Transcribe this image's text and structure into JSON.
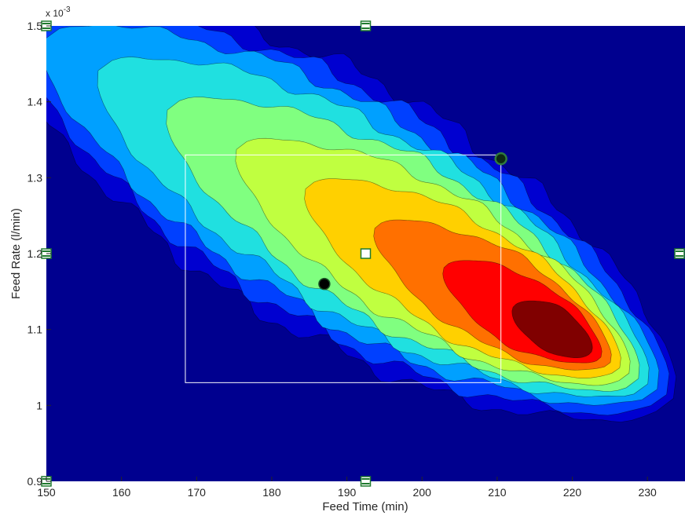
{
  "chart_data": {
    "type": "heatmap",
    "subtype": "filled-contour",
    "title": "",
    "xlabel": "Feed Time (min)",
    "ylabel": "Feed Rate (l/min)",
    "y_exponent_label": "x 10",
    "y_exponent_power": "-3",
    "xlim": [
      150,
      235
    ],
    "ylim": [
      0.9,
      1.5
    ],
    "x_ticks": [
      150,
      160,
      170,
      180,
      190,
      200,
      210,
      220,
      230
    ],
    "x_tick_labels": [
      "150",
      "160",
      "170",
      "180",
      "190",
      "200",
      "210",
      "220",
      "230"
    ],
    "y_ticks": [
      0.9,
      1.0,
      1.1,
      1.2,
      1.3,
      1.4,
      1.5
    ],
    "y_tick_labels": [
      "0.9",
      "1",
      "1.1",
      "1.2",
      "1.3",
      "1.4",
      "1.5"
    ],
    "colormap": "jet",
    "background_color": "#00008f",
    "levels": [
      {
        "level": 1,
        "color": "#0000d0"
      },
      {
        "level": 2,
        "color": "#0040ff"
      },
      {
        "level": 3,
        "color": "#00a0ff"
      },
      {
        "level": 4,
        "color": "#20e0e0"
      },
      {
        "level": 5,
        "color": "#80ff80"
      },
      {
        "level": 6,
        "color": "#c0ff40"
      },
      {
        "level": 7,
        "color": "#ffd000"
      },
      {
        "level": 8,
        "color": "#ff7000"
      },
      {
        "level": 9,
        "color": "#ff0000"
      },
      {
        "level": 10,
        "color": "#800000"
      }
    ],
    "ridge": {
      "start": [
        150,
        1.48
      ],
      "end": [
        228,
        1.04
      ],
      "peak": [
        214,
        1.13
      ]
    },
    "points": [
      {
        "x": 187,
        "y": 1.16,
        "style": "filled"
      },
      {
        "x": 210.5,
        "y": 1.325,
        "style": "ringed"
      }
    ],
    "selection_box": {
      "x": [
        168.5,
        210.5
      ],
      "y": [
        1.03,
        1.33
      ],
      "color": "#ffffff"
    },
    "handles": [
      {
        "x": 150,
        "y": 1.5,
        "filled": false
      },
      {
        "x": 192.5,
        "y": 1.5,
        "filled": false
      },
      {
        "x": 150,
        "y": 1.2,
        "filled": false
      },
      {
        "x": 192.5,
        "y": 1.2,
        "filled": true
      },
      {
        "x": 150,
        "y": 0.9,
        "filled": false
      },
      {
        "x": 192.5,
        "y": 0.9,
        "filled": false
      },
      {
        "x": 235,
        "y": 1.2,
        "filled": false
      }
    ]
  }
}
